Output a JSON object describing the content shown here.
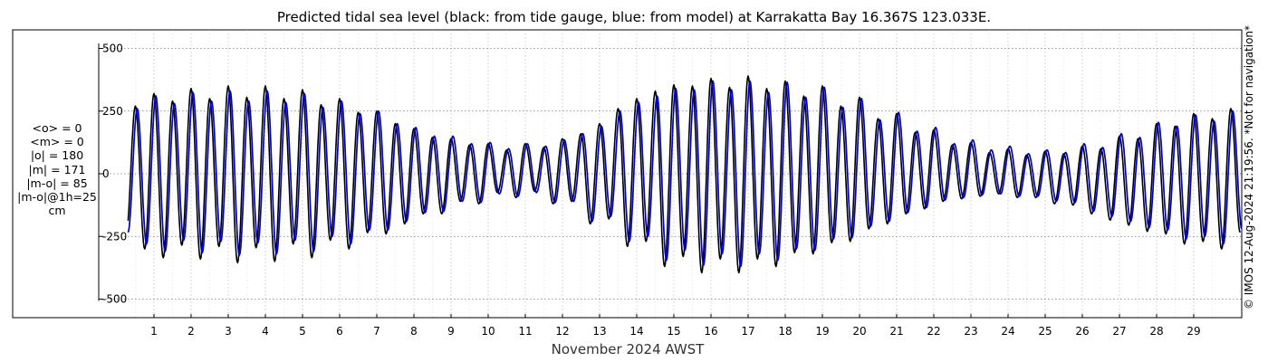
{
  "title": "Predicted tidal sea level (black: from tide gauge, blue: from model) at Karrakatta Bay 16.367S 123.033E.",
  "stats": [
    "<o> = 0",
    "<m> = 0",
    "|o| = 180",
    "|m| = 171",
    "|m-o| = 85",
    "|m-o|@1h=25",
    "cm"
  ],
  "credit": "© IMOS 12-Aug-2024 21:19:56. *Not for navigation*",
  "colors": {
    "observed": "#000000",
    "model": "#0000cc",
    "grid": "#777777"
  },
  "chart_data": {
    "type": "line",
    "title": "Predicted tidal sea level (black: from tide gauge, blue: from model) at Karrakatta Bay 16.367S 123.033E.",
    "xlabel": "November 2024 AWST",
    "ylabel": "",
    "xlim": [
      0.3,
      30.0
    ],
    "ylim": [
      -560,
      520
    ],
    "x_ticks": [
      1,
      2,
      3,
      4,
      5,
      6,
      7,
      8,
      9,
      10,
      11,
      12,
      13,
      14,
      15,
      16,
      17,
      18,
      19,
      20,
      21,
      22,
      23,
      24,
      25,
      26,
      27,
      28,
      29
    ],
    "y_ticks": [
      500,
      250,
      0,
      -250,
      -500
    ],
    "grid": true,
    "series": [
      {
        "name": "tide gauge",
        "color": "black",
        "high_water_peaks": [
          [
            0.5,
            270
          ],
          [
            1.0,
            320
          ],
          [
            1.5,
            290
          ],
          [
            2.0,
            340
          ],
          [
            2.5,
            300
          ],
          [
            3.0,
            350
          ],
          [
            3.5,
            305
          ],
          [
            4.0,
            350
          ],
          [
            4.5,
            300
          ],
          [
            5.0,
            335
          ],
          [
            5.5,
            275
          ],
          [
            6.0,
            300
          ],
          [
            6.5,
            245
          ],
          [
            7.0,
            250
          ],
          [
            7.5,
            200
          ],
          [
            8.0,
            180
          ],
          [
            8.5,
            145
          ],
          [
            9.0,
            140
          ],
          [
            9.5,
            115
          ],
          [
            10.0,
            120
          ],
          [
            10.5,
            95
          ],
          [
            11.0,
            120
          ],
          [
            11.5,
            105
          ],
          [
            12.0,
            140
          ],
          [
            12.5,
            160
          ],
          [
            13.0,
            200
          ],
          [
            13.5,
            260
          ],
          [
            14.0,
            300
          ],
          [
            14.5,
            330
          ],
          [
            15.0,
            355
          ],
          [
            15.5,
            350
          ],
          [
            16.0,
            380
          ],
          [
            16.5,
            345
          ],
          [
            17.0,
            390
          ],
          [
            17.5,
            340
          ],
          [
            18.0,
            370
          ],
          [
            18.5,
            310
          ],
          [
            19.0,
            350
          ],
          [
            19.5,
            270
          ],
          [
            20.0,
            305
          ],
          [
            20.5,
            220
          ],
          [
            21.0,
            240
          ],
          [
            21.5,
            165
          ],
          [
            22.0,
            175
          ],
          [
            22.5,
            115
          ],
          [
            23.0,
            125
          ],
          [
            23.5,
            85
          ],
          [
            24.0,
            100
          ],
          [
            24.5,
            75
          ],
          [
            25.0,
            90
          ],
          [
            25.5,
            80
          ],
          [
            26.0,
            110
          ],
          [
            26.5,
            100
          ],
          [
            27.0,
            150
          ],
          [
            27.5,
            140
          ],
          [
            28.0,
            200
          ],
          [
            28.5,
            190
          ],
          [
            29.0,
            240
          ],
          [
            29.5,
            220
          ],
          [
            30.0,
            260
          ]
        ],
        "low_water_troughs": [
          [
            0.75,
            -300
          ],
          [
            1.25,
            -335
          ],
          [
            1.75,
            -285
          ],
          [
            2.25,
            -340
          ],
          [
            2.75,
            -290
          ],
          [
            3.25,
            -355
          ],
          [
            3.75,
            -295
          ],
          [
            4.25,
            -350
          ],
          [
            4.75,
            -280
          ],
          [
            5.25,
            -335
          ],
          [
            5.75,
            -265
          ],
          [
            6.25,
            -300
          ],
          [
            6.75,
            -235
          ],
          [
            7.25,
            -240
          ],
          [
            7.75,
            -200
          ],
          [
            8.25,
            -160
          ],
          [
            8.75,
            -160
          ],
          [
            9.25,
            -110
          ],
          [
            9.75,
            -120
          ],
          [
            10.25,
            -75
          ],
          [
            10.75,
            -95
          ],
          [
            11.25,
            -70
          ],
          [
            11.75,
            -120
          ],
          [
            12.25,
            -110
          ],
          [
            12.75,
            -200
          ],
          [
            13.25,
            -180
          ],
          [
            13.75,
            -290
          ],
          [
            14.25,
            -270
          ],
          [
            14.75,
            -370
          ],
          [
            15.25,
            -330
          ],
          [
            15.75,
            -395
          ],
          [
            16.25,
            -340
          ],
          [
            16.75,
            -395
          ],
          [
            17.25,
            -340
          ],
          [
            17.75,
            -370
          ],
          [
            18.25,
            -315
          ],
          [
            18.75,
            -320
          ],
          [
            19.25,
            -275
          ],
          [
            19.75,
            -270
          ],
          [
            20.25,
            -220
          ],
          [
            20.75,
            -200
          ],
          [
            21.25,
            -160
          ],
          [
            21.75,
            -140
          ],
          [
            22.25,
            -110
          ],
          [
            22.75,
            -100
          ],
          [
            23.25,
            -90
          ],
          [
            23.75,
            -80
          ],
          [
            24.25,
            -95
          ],
          [
            24.75,
            -95
          ],
          [
            25.25,
            -120
          ],
          [
            25.75,
            -125
          ],
          [
            26.25,
            -160
          ],
          [
            26.75,
            -185
          ],
          [
            27.25,
            -205
          ],
          [
            27.75,
            -230
          ],
          [
            28.25,
            -240
          ],
          [
            28.75,
            -280
          ],
          [
            29.25,
            -270
          ],
          [
            29.75,
            -300
          ]
        ]
      },
      {
        "name": "model",
        "color": "blue",
        "high_water_peaks": [
          [
            0.55,
            260
          ],
          [
            1.05,
            310
          ],
          [
            1.55,
            280
          ],
          [
            2.05,
            325
          ],
          [
            2.55,
            290
          ],
          [
            3.05,
            330
          ],
          [
            3.55,
            290
          ],
          [
            4.05,
            330
          ],
          [
            4.55,
            285
          ],
          [
            5.05,
            320
          ],
          [
            5.55,
            265
          ],
          [
            6.05,
            290
          ],
          [
            6.55,
            240
          ],
          [
            7.05,
            250
          ],
          [
            7.55,
            200
          ],
          [
            8.05,
            185
          ],
          [
            8.55,
            150
          ],
          [
            9.05,
            150
          ],
          [
            9.55,
            120
          ],
          [
            10.05,
            125
          ],
          [
            10.55,
            100
          ],
          [
            11.05,
            120
          ],
          [
            11.55,
            110
          ],
          [
            12.05,
            135
          ],
          [
            12.55,
            160
          ],
          [
            13.05,
            190
          ],
          [
            13.55,
            250
          ],
          [
            14.05,
            285
          ],
          [
            14.55,
            310
          ],
          [
            15.05,
            340
          ],
          [
            15.55,
            335
          ],
          [
            16.05,
            370
          ],
          [
            16.55,
            335
          ],
          [
            17.05,
            370
          ],
          [
            17.55,
            325
          ],
          [
            18.05,
            365
          ],
          [
            18.55,
            305
          ],
          [
            19.05,
            345
          ],
          [
            19.55,
            265
          ],
          [
            20.05,
            300
          ],
          [
            20.55,
            215
          ],
          [
            21.05,
            245
          ],
          [
            21.55,
            170
          ],
          [
            22.05,
            185
          ],
          [
            22.55,
            120
          ],
          [
            23.05,
            135
          ],
          [
            23.55,
            95
          ],
          [
            24.05,
            110
          ],
          [
            24.55,
            80
          ],
          [
            25.05,
            95
          ],
          [
            25.55,
            85
          ],
          [
            26.05,
            120
          ],
          [
            26.55,
            105
          ],
          [
            27.05,
            160
          ],
          [
            27.55,
            145
          ],
          [
            28.05,
            205
          ],
          [
            28.55,
            190
          ],
          [
            29.05,
            235
          ],
          [
            29.55,
            210
          ],
          [
            30.05,
            250
          ]
        ],
        "low_water_troughs": [
          [
            0.8,
            -280
          ],
          [
            1.3,
            -310
          ],
          [
            1.8,
            -265
          ],
          [
            2.3,
            -315
          ],
          [
            2.8,
            -270
          ],
          [
            3.3,
            -325
          ],
          [
            3.8,
            -275
          ],
          [
            4.3,
            -320
          ],
          [
            4.8,
            -265
          ],
          [
            5.3,
            -310
          ],
          [
            5.8,
            -250
          ],
          [
            6.3,
            -280
          ],
          [
            6.8,
            -225
          ],
          [
            7.3,
            -225
          ],
          [
            7.8,
            -190
          ],
          [
            8.3,
            -155
          ],
          [
            8.8,
            -150
          ],
          [
            9.3,
            -110
          ],
          [
            9.8,
            -115
          ],
          [
            10.3,
            -80
          ],
          [
            10.8,
            -90
          ],
          [
            11.3,
            -75
          ],
          [
            11.8,
            -115
          ],
          [
            12.3,
            -110
          ],
          [
            12.8,
            -190
          ],
          [
            13.3,
            -170
          ],
          [
            13.8,
            -270
          ],
          [
            14.3,
            -250
          ],
          [
            14.8,
            -345
          ],
          [
            15.3,
            -305
          ],
          [
            15.8,
            -365
          ],
          [
            16.3,
            -320
          ],
          [
            16.8,
            -370
          ],
          [
            17.3,
            -320
          ],
          [
            17.8,
            -345
          ],
          [
            18.3,
            -300
          ],
          [
            18.8,
            -305
          ],
          [
            19.3,
            -260
          ],
          [
            19.8,
            -255
          ],
          [
            20.3,
            -210
          ],
          [
            20.8,
            -190
          ],
          [
            21.3,
            -155
          ],
          [
            21.8,
            -135
          ],
          [
            22.3,
            -105
          ],
          [
            22.8,
            -95
          ],
          [
            23.3,
            -85
          ],
          [
            23.8,
            -80
          ],
          [
            24.3,
            -90
          ],
          [
            24.8,
            -90
          ],
          [
            25.3,
            -110
          ],
          [
            25.8,
            -115
          ],
          [
            26.3,
            -150
          ],
          [
            26.8,
            -170
          ],
          [
            27.3,
            -190
          ],
          [
            27.8,
            -215
          ],
          [
            28.3,
            -225
          ],
          [
            28.8,
            -260
          ],
          [
            29.3,
            -250
          ],
          [
            29.8,
            -280
          ]
        ]
      }
    ]
  }
}
